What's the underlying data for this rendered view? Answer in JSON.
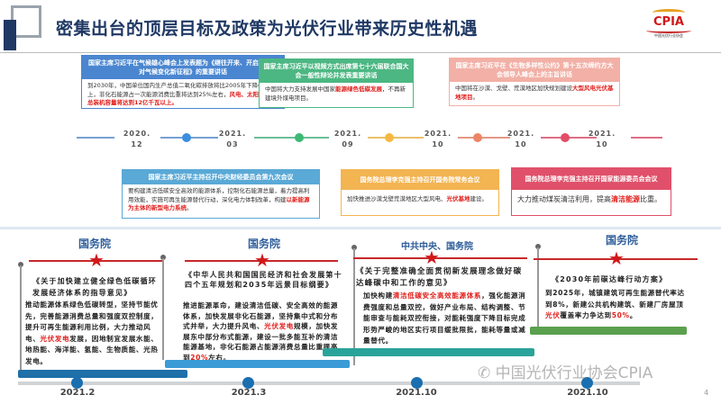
{
  "header": {
    "title": "密集出台的顶层目标及政策为光伏行业带来历史性机遇",
    "logo_text": "CPIA",
    "logo_subtitle": "中国光伏行业协会"
  },
  "top_cards": [
    {
      "header": "国家主席习近平在气候雄心峰会上发表题为《继往开来、开启全球应对气候变化新征程》的重要讲话",
      "body": "到2030年，中国单位国内生产总值二氧化碳排放将比2005年下降65%以上，非化石能源占一次能源消费比重将达到25%左右，",
      "body_red": "风电、太阳能发电总装机容量将达到12亿千瓦以上。",
      "color": "#4a86d0"
    },
    {
      "header": "国家主席习近平以视频方式出席第七十六届联合国大会一般性辩论并发表重要讲话",
      "body": "中国将大力支持发展中国家",
      "body_red": "能源绿色低碳发展",
      "body_after": "，不再新建境外煤电项目。",
      "color": "#4cb782"
    },
    {
      "header": "国家主席习近平在《生物多样性公约》第十五次缔约方大会领导人峰会上的主旨讲话",
      "body": "中国将在沙漠、戈壁、荒漠地区加快规划建设",
      "body_red": "大型风电光伏基地项目",
      "body_after": "。",
      "color": "#f2b0a6"
    }
  ],
  "timeline": {
    "dates": [
      [
        "2020.",
        "12"
      ],
      [
        "2021.",
        "03"
      ],
      [
        "2021.",
        "09"
      ],
      [
        "2021.",
        "10"
      ],
      [
        "2021.",
        "10"
      ],
      [
        "2021.",
        "10"
      ]
    ],
    "dot_colors": [
      "#3b8ee0",
      "#3cba74",
      "#f5b942",
      "#ee8466",
      "#e34d68"
    ]
  },
  "mid_cards": [
    {
      "header": "国家主席习近平主持召开中央财经委员会第九次会议",
      "body": "要构建清洁低碳安全高效的能源体系，控制化石能源总量，着力提高利用效能，实施可再生能源替代行动，深化电力体制改革，构建",
      "body_red": "以新能源为主体的新型电力系统",
      "body_after": "。",
      "color": "#5aa9d6"
    },
    {
      "header": "国务院总理李克强主持召开国务院常务会议",
      "body": "加快推进沙漠戈壁荒漠地区大型风电、",
      "body_red": "光伏基地",
      "body_after": "建设。",
      "color": "#f3b452"
    },
    {
      "header": "国务院总理李克强主持召开国家能源委员会会议",
      "body": "大力推动煤炭清洁利用，提高",
      "body_red": "清洁能源",
      "body_after": "比重。",
      "color": "#e0506a"
    }
  ],
  "bottom": [
    {
      "org": "国务院",
      "doc": "《关于加快建立健全绿色低碳循环发展经济体系的指导意见》",
      "text": "推动能源体系绿色低碳转型，坚持节能优先，完善能源消费总量和强度双控制度，提升可再生能源利用比例，大力推动风电、",
      "red": "光伏发电",
      "after": "发展，因地制宜发展水能、地热能、海洋能、氢能、生物质能、光热发电。",
      "date": "2021.2",
      "bar_color": "#1f6fa8"
    },
    {
      "org": "国务院",
      "doc": "《中华人民共和国国民经济和社会发展第十四个五年规划和2035年远景目标纲要》",
      "text": "推进能源革命，建设清洁低碳、安全高效的能源体系，加快发展非化石能源，坚持集中式和分布式并举，大力提升风电、",
      "red": "光伏发电",
      "after": "规模，加快发展东中部分布式能源，建设一批多能互补的清洁能源基地，非化石能源占能源消费总量比重提高到",
      "red2": "20%",
      "after2": "左右。",
      "date": "2021.3",
      "bar_color": "#3a9bd6"
    },
    {
      "org": "中共中央、国务院",
      "doc": "《关于完整准确全面贯彻新发展理念做好碳达峰碳中和工作的意见》",
      "text": "加快构建",
      "red": "清洁低碳安全高效能源体系",
      "after": "，强化能源消费强度和总量双控，做好产业布局、结构调整、节能审查与能耗双控衔接，对能耗强度下降目标完成形势严峻的地区实行项目缓批限批，能耗等量或减量替代。",
      "date": "2021.10",
      "bar_color": "#2aa39a"
    },
    {
      "org": "国务院",
      "doc": "《2030年前碳达峰行动方案》",
      "text": "到2025年，城镇建筑可再生能源替代率达到8%，新建公共机构建筑、新建厂房屋顶",
      "red": "光伏",
      "after": "覆盖率力争达到",
      "red2": "50%",
      "after2": "。",
      "date": "2021.10",
      "bar_color": "#5aa04e"
    }
  ],
  "watermark": "中国光伏行业协会CPIA",
  "page_number": "4"
}
